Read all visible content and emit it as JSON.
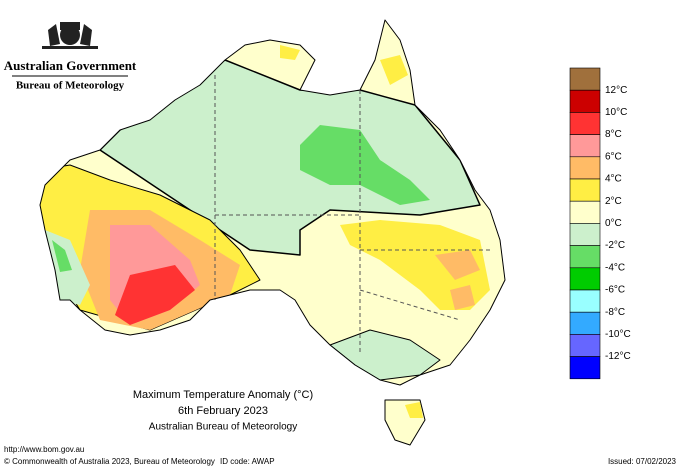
{
  "header": {
    "government": "Australian Government",
    "bureau": "Bureau of Meteorology"
  },
  "title": {
    "line1": "Maximum Temperature Anomaly (°C)",
    "line2": "6th February 2023",
    "line3": "Australian Bureau of Meteorology"
  },
  "legend": {
    "colors": [
      "#a0703c",
      "#cc0000",
      "#ff3333",
      "#ff9999",
      "#ffbb66",
      "#ffee44",
      "#ffffcc",
      "#ccf0cc",
      "#66dd66",
      "#00cc00",
      "#99ffff",
      "#33aaff",
      "#6666ff",
      "#0000ff"
    ],
    "labels": [
      "12°C",
      "10°C",
      "8°C",
      "6°C",
      "4°C",
      "2°C",
      "0°C",
      "-2°C",
      "-4°C",
      "-6°C",
      "-8°C",
      "-10°C",
      "-12°C"
    ]
  },
  "footer": {
    "url": "http://www.bom.gov.au",
    "copyright": "© Commonwealth of Australia 2023, Bureau of Meteorology",
    "id_code": "ID code: AWAP",
    "issued": "Issued: 07/02/2023"
  }
}
